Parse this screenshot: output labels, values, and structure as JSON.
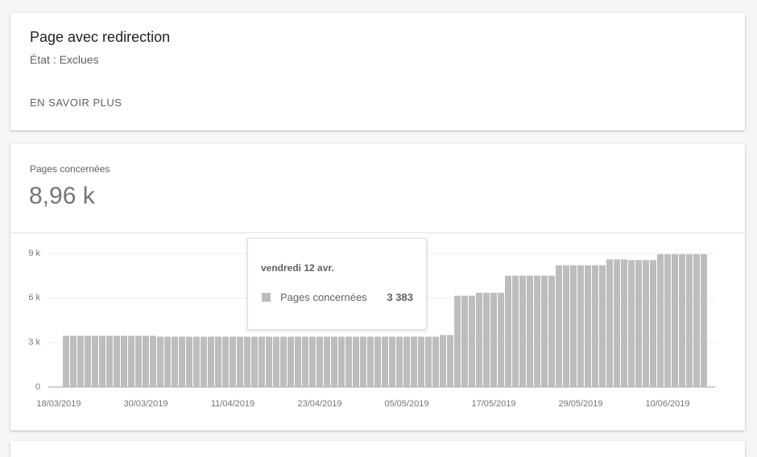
{
  "header": {
    "title": "Page avec redirection",
    "status": "État : Exclues",
    "link": "EN SAVOIR PLUS"
  },
  "summary": {
    "label": "Pages concernées",
    "value": "8,96 k"
  },
  "tooltip": {
    "date": "vendredi 12 avr.",
    "value_label": "3 383"
  },
  "chart_data": {
    "type": "bar",
    "categories": [
      "18/03/2019",
      null,
      null,
      null,
      null,
      null,
      null,
      null,
      null,
      null,
      null,
      null,
      "30/03/2019",
      null,
      null,
      null,
      null,
      null,
      null,
      null,
      null,
      null,
      null,
      null,
      "11/04/2019",
      null,
      null,
      null,
      null,
      null,
      null,
      null,
      null,
      null,
      null,
      null,
      "23/04/2019",
      null,
      null,
      null,
      null,
      null,
      null,
      null,
      null,
      null,
      null,
      null,
      "05/05/2019",
      null,
      null,
      null,
      null,
      null,
      null,
      null,
      null,
      null,
      null,
      null,
      "17/05/2019",
      null,
      null,
      null,
      null,
      null,
      null,
      null,
      null,
      null,
      null,
      null,
      "29/05/2019",
      null,
      null,
      null,
      null,
      null,
      null,
      null,
      null,
      null,
      null,
      null,
      "10/06/2019",
      null,
      null,
      null,
      null
    ],
    "series": [
      {
        "name": "Pages concernées",
        "color": "#bdbdbd",
        "values": [
          3450,
          3450,
          3450,
          3450,
          3450,
          3450,
          3450,
          3450,
          3450,
          3450,
          3450,
          3450,
          3450,
          3390,
          3390,
          3390,
          3390,
          3390,
          3390,
          3390,
          3390,
          3390,
          3390,
          3390,
          3390,
          3383,
          3390,
          3390,
          3390,
          3390,
          3390,
          3390,
          3390,
          3390,
          3390,
          3390,
          3390,
          3390,
          3390,
          3390,
          3390,
          3390,
          3390,
          3390,
          3390,
          3390,
          3390,
          3390,
          3390,
          3390,
          3390,
          3390,
          3500,
          3500,
          6150,
          6150,
          6150,
          6350,
          6350,
          6350,
          6350,
          7500,
          7500,
          7500,
          7500,
          7500,
          7500,
          7500,
          8200,
          8200,
          8200,
          8200,
          8200,
          8200,
          8200,
          8600,
          8600,
          8600,
          8550,
          8550,
          8550,
          8550,
          8950,
          8950,
          8950,
          8950,
          8950,
          8950,
          8950
        ]
      }
    ],
    "ylim": [
      0,
      9000
    ],
    "yticks": [
      0,
      {
        "value": 3000,
        "label": "3 k"
      },
      {
        "value": 6000,
        "label": "6 k"
      },
      {
        "value": 9000,
        "label": "9 k"
      }
    ],
    "grid": true
  }
}
